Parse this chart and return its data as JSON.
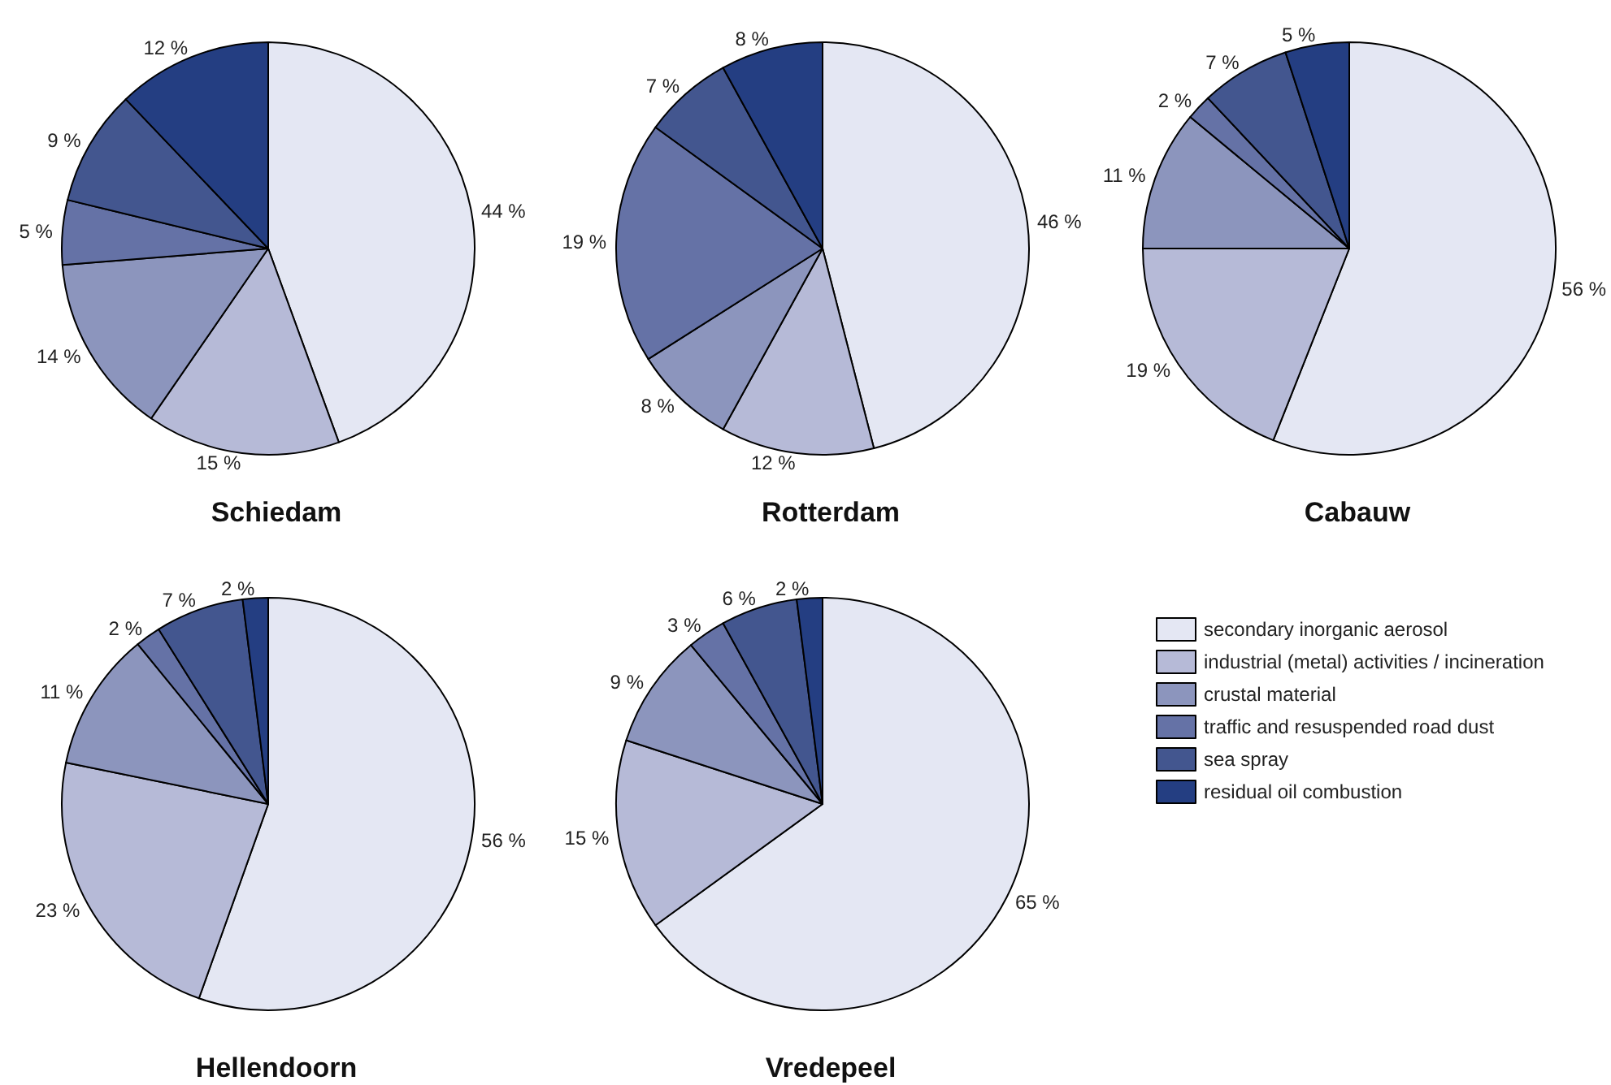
{
  "chart_data": [
    {
      "type": "pie",
      "title": "Schiedam",
      "categories": [
        null,
        null,
        null,
        null,
        null,
        null
      ],
      "values": [
        44,
        15,
        14,
        5,
        9,
        12
      ],
      "value_labels": [
        "44 %",
        "15 %",
        "14 %",
        "5 %",
        "9 %",
        "12 %"
      ],
      "colors": [
        "#e4e7f3",
        "#b6bad7",
        "#8c95bd",
        "#6572a6",
        "#43568f",
        "#243e82"
      ]
    },
    {
      "type": "pie",
      "title": "Rotterdam",
      "categories": [
        null,
        null,
        null,
        null,
        null,
        null
      ],
      "values": [
        46,
        12,
        8,
        19,
        7,
        8
      ],
      "value_labels": [
        "46 %",
        "12 %",
        "8 %",
        "19 %",
        "7 %",
        "8 %"
      ],
      "colors": [
        "#e4e7f3",
        "#b6bad7",
        "#8c95bd",
        "#6572a6",
        "#43568f",
        "#243e82"
      ]
    },
    {
      "type": "pie",
      "title": "Cabauw",
      "categories": [
        null,
        null,
        null,
        null,
        null,
        null
      ],
      "values": [
        56,
        19,
        11,
        2,
        7,
        5
      ],
      "value_labels": [
        "56 %",
        "19 %",
        "11 %",
        "2 %",
        "7 %",
        "5 %"
      ],
      "colors": [
        "#e4e7f3",
        "#b6bad7",
        "#8c95bd",
        "#6572a6",
        "#43568f",
        "#243e82"
      ]
    },
    {
      "type": "pie",
      "title": "Hellendoorn",
      "categories": [
        null,
        null,
        null,
        null,
        null,
        null
      ],
      "values": [
        56,
        23,
        11,
        2,
        7,
        2
      ],
      "value_labels": [
        "56 %",
        "23 %",
        "11 %",
        "2 %",
        "7 %",
        "2 %"
      ],
      "colors": [
        "#e4e7f3",
        "#b6bad7",
        "#8c95bd",
        "#6572a6",
        "#43568f",
        "#243e82"
      ]
    },
    {
      "type": "pie",
      "title": "Vredepeel",
      "categories": [
        "secondary inorganic aerosol",
        "industrial (metal) activities / incineration",
        "crustal material",
        "traffic and resuspended road dust",
        "sea spray",
        "residual oil combustion"
      ],
      "values": [
        65,
        15,
        9,
        3,
        6,
        2
      ],
      "value_labels": [
        "65 %",
        "15 %",
        "9 %",
        "3 %",
        "6 %",
        "2 %"
      ],
      "colors": [
        "#e4e7f3",
        "#b6bad7",
        "#8c95bd",
        "#6572a6",
        "#43568f",
        "#243e82"
      ],
      "legend": "right"
    }
  ]
}
